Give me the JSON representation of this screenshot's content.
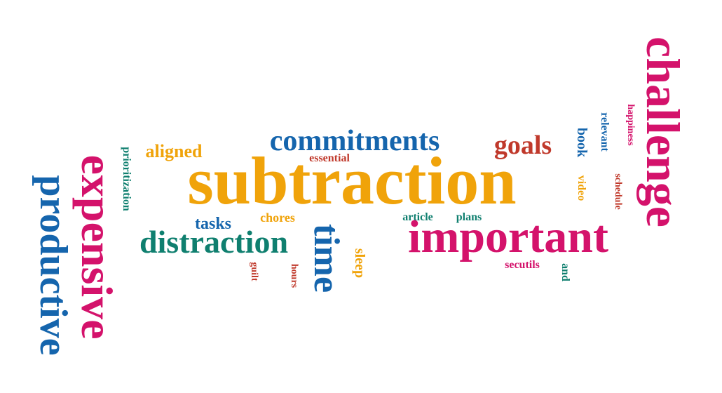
{
  "words": {
    "subtraction": "subtraction",
    "important": "important",
    "challenge": "challenge",
    "expensive": "expensive",
    "productive": "productive",
    "commitments": "commitments",
    "distraction": "distraction",
    "time": "time",
    "goals": "goals",
    "aligned": "aligned",
    "tasks": "tasks",
    "chores": "chores",
    "essential": "essential",
    "prioritization": "prioritization",
    "article": "article",
    "plans": "plans",
    "book": "book",
    "video": "video",
    "relevant": "relevant",
    "happiness": "happiness",
    "schedule": "schedule",
    "sleep": "sleep",
    "guilt": "guilt",
    "hours": "hours",
    "secutils": "secutils",
    "and": "and"
  },
  "colors": {
    "blue": "#1565ad",
    "orange": "#f0a30a",
    "pink": "#d4126b",
    "teal": "#0f7f6f",
    "red": "#c0392b"
  }
}
